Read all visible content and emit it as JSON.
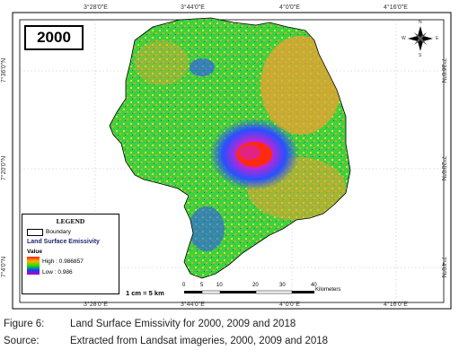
{
  "map": {
    "year": "2000",
    "top_ticks": [
      "3°28'0\"E",
      "3°44'0\"E",
      "4°0'0\"E",
      "4°16'0\"E"
    ],
    "bottom_ticks": [
      "3°28'0\"E",
      "3°44'0\"E",
      "4°0'0\"E",
      "4°16'0\"E"
    ],
    "left_ticks": [
      "7°36'0\"N",
      "7°20'0\"N",
      "7°4'0\"N"
    ],
    "right_ticks": [
      "7°36'0\"N",
      "7°20'0\"N",
      "7°4'0\"N"
    ],
    "compass": {
      "n": "N",
      "s": "S",
      "e": "E",
      "w": "W"
    },
    "legend": {
      "title": "LEGEND",
      "boundary_label": "Boundary",
      "lse_title": "Land Surface Emissivity",
      "value_title": "Value",
      "high_label": "High : 0.986857",
      "low_label": "Low : 0.986"
    },
    "scale": {
      "text": "1 cm = 5 km",
      "numbers": [
        "0",
        "5",
        "10",
        "20",
        "30",
        "40"
      ],
      "unit": "Kilometers"
    },
    "colors": {
      "green": "#3cd23c",
      "orange": "#f0a030",
      "red": "#ff2a10",
      "blue": "#2850ff",
      "magenta": "#d020d0",
      "yellow": "#d8e040"
    }
  },
  "caption": {
    "figure_label": "Figure 6:",
    "figure_text": "Land Surface Emissivity for 2000, 2009 and 2018",
    "source_label": "Source:",
    "source_text": "Extracted from Landsat imageries, 2000, 2009 and 2018"
  }
}
